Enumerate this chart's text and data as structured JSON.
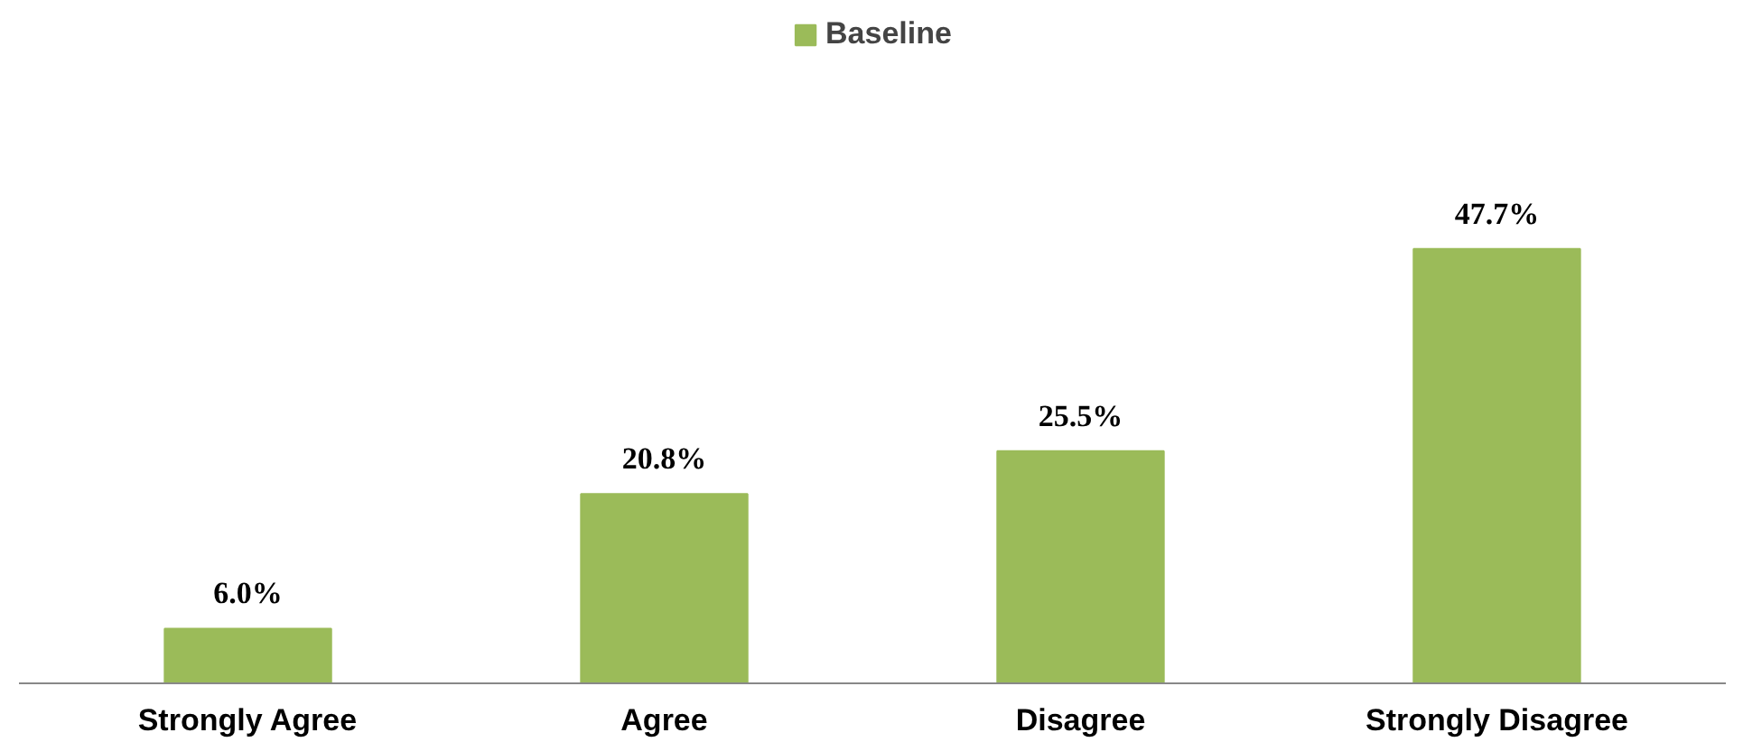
{
  "chart_data": {
    "type": "bar",
    "categories": [
      "Strongly Agree",
      "Agree",
      "Disagree",
      "Strongly Disagree"
    ],
    "series": [
      {
        "name": "Baseline",
        "color": "#9bbb59",
        "values": [
          6.0,
          20.8,
          25.5,
          47.7
        ],
        "value_labels": [
          "6.0%",
          "20.8%",
          "25.5%",
          "47.7%"
        ]
      }
    ],
    "legend": "top"
  }
}
